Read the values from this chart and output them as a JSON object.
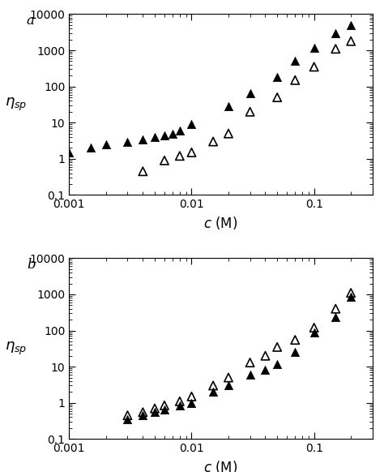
{
  "panel_a": {
    "filled": {
      "x": [
        0.001,
        0.0015,
        0.002,
        0.003,
        0.004,
        0.005,
        0.006,
        0.007,
        0.008,
        0.01,
        0.02,
        0.03,
        0.05,
        0.07,
        0.1,
        0.15,
        0.2
      ],
      "y": [
        1.5,
        2.0,
        2.5,
        3.0,
        3.5,
        4.0,
        4.5,
        5.0,
        6.0,
        9.0,
        28.0,
        65.0,
        180.0,
        500.0,
        1200.0,
        3000.0,
        5000.0
      ]
    },
    "open": {
      "x": [
        0.004,
        0.006,
        0.008,
        0.01,
        0.015,
        0.02,
        0.03,
        0.05,
        0.07,
        0.1,
        0.15,
        0.2
      ],
      "y": [
        0.45,
        0.9,
        1.2,
        1.5,
        3.0,
        5.0,
        20.0,
        50.0,
        150.0,
        350.0,
        1100.0,
        1800.0
      ]
    },
    "label": "a"
  },
  "panel_b": {
    "filled": {
      "x": [
        0.003,
        0.004,
        0.005,
        0.006,
        0.008,
        0.01,
        0.015,
        0.02,
        0.03,
        0.04,
        0.05,
        0.07,
        0.1,
        0.15,
        0.2
      ],
      "y": [
        0.35,
        0.45,
        0.55,
        0.65,
        0.85,
        1.0,
        2.0,
        3.0,
        6.0,
        8.0,
        12.0,
        25.0,
        90.0,
        230.0,
        850.0
      ]
    },
    "open": {
      "x": [
        0.003,
        0.004,
        0.005,
        0.006,
        0.008,
        0.01,
        0.015,
        0.02,
        0.03,
        0.04,
        0.05,
        0.07,
        0.1,
        0.15,
        0.2
      ],
      "y": [
        0.45,
        0.55,
        0.7,
        0.85,
        1.1,
        1.5,
        3.0,
        5.0,
        13.0,
        20.0,
        35.0,
        55.0,
        120.0,
        400.0,
        1100.0
      ]
    },
    "label": "b"
  },
  "xlim": [
    0.001,
    0.3
  ],
  "ylim": [
    0.1,
    10000
  ],
  "xlabel_italic": "c",
  "xlabel_unit": " (M)",
  "marker_size": 55,
  "lw": 1.2,
  "filled_color": "#000000",
  "open_color": "#000000",
  "background_color": "#ffffff",
  "tick_labelsize": 10,
  "label_fontsize": 12
}
